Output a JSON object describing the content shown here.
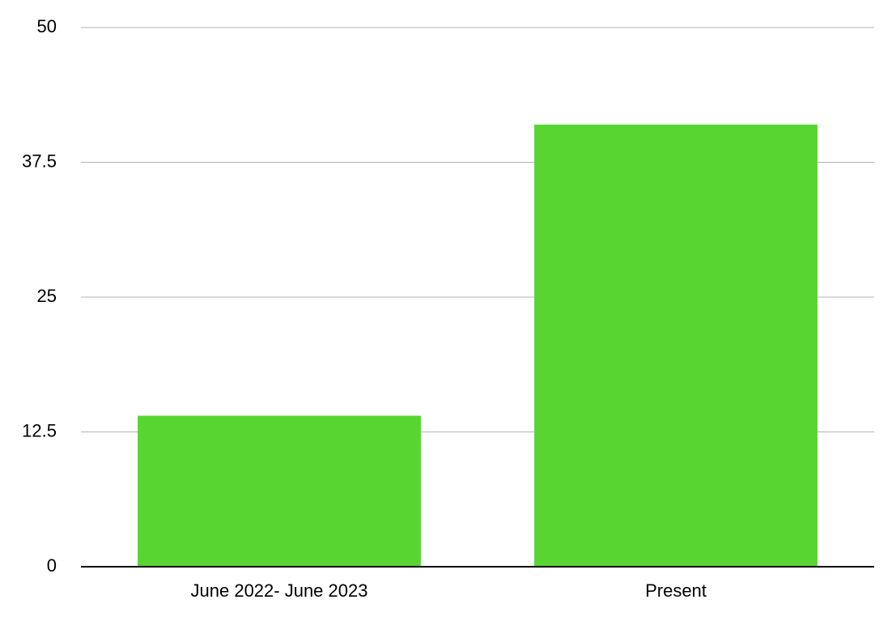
{
  "chart_data": {
    "type": "bar",
    "categories": [
      "June 2022- June 2023",
      "Present"
    ],
    "values": [
      14,
      41
    ],
    "color": "#57d531",
    "ylim": [
      0,
      50
    ],
    "yticks": [
      0,
      12.5,
      25,
      37.5,
      50
    ],
    "grid": true
  }
}
